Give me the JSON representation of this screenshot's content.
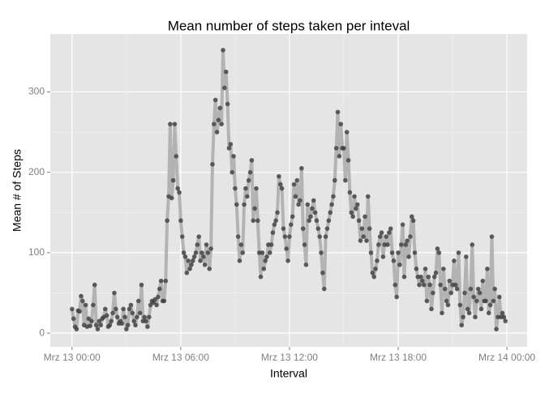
{
  "chart_data": {
    "type": "line",
    "title": "Mean number of steps taken per inteval",
    "x_label": "Interval",
    "y_label": "Mean # of Steps",
    "x": [
      0,
      5,
      10,
      15,
      20,
      25,
      30,
      35,
      40,
      45,
      50,
      55,
      60,
      65,
      70,
      75,
      80,
      85,
      90,
      95,
      100,
      105,
      110,
      115,
      120,
      125,
      130,
      135,
      140,
      145,
      150,
      155,
      160,
      165,
      170,
      175,
      180,
      185,
      190,
      195,
      200,
      205,
      210,
      215,
      220,
      225,
      230,
      235,
      240,
      245,
      250,
      255,
      260,
      265,
      270,
      275,
      280,
      285,
      290,
      295,
      300,
      305,
      310,
      315,
      320,
      325,
      330,
      335,
      340,
      345,
      350,
      355,
      360,
      365,
      370,
      375,
      380,
      385,
      390,
      395,
      400,
      405,
      410,
      415,
      420,
      425,
      430,
      435,
      440,
      445,
      450,
      455,
      460,
      465,
      470,
      475,
      480,
      485,
      490,
      495,
      500,
      505,
      510,
      515,
      520,
      525,
      530,
      535,
      540,
      545,
      550,
      555,
      560,
      565,
      570,
      575,
      580,
      585,
      590,
      595,
      600,
      605,
      610,
      615,
      620,
      625,
      630,
      635,
      640,
      645,
      650,
      655,
      660,
      665,
      670,
      675,
      680,
      685,
      690,
      695,
      700,
      705,
      710,
      715,
      720,
      725,
      730,
      735,
      740,
      745,
      750,
      755,
      760,
      765,
      770,
      775,
      780,
      785,
      790,
      795,
      800,
      805,
      810,
      815,
      820,
      825,
      830,
      835,
      840,
      845,
      850,
      855,
      860,
      865,
      870,
      875,
      880,
      885,
      890,
      895,
      900,
      905,
      910,
      915,
      920,
      925,
      930,
      935,
      940,
      945,
      950,
      955,
      960,
      965,
      970,
      975,
      980,
      985,
      990,
      995,
      1000,
      1005,
      1010,
      1015,
      1020,
      1025,
      1030,
      1035,
      1040,
      1045,
      1050,
      1055,
      1060,
      1065,
      1070,
      1075,
      1080,
      1085,
      1090,
      1095,
      1100,
      1105,
      1110,
      1115,
      1120,
      1125,
      1130,
      1135,
      1140,
      1145,
      1150,
      1155,
      1160,
      1165,
      1170,
      1175,
      1180,
      1185,
      1190,
      1195,
      1200,
      1205,
      1210,
      1215,
      1220,
      1225,
      1230,
      1235,
      1240,
      1245,
      1250,
      1255,
      1260,
      1265,
      1270,
      1275,
      1280,
      1285,
      1290,
      1295,
      1300,
      1305,
      1310,
      1315,
      1320,
      1325,
      1330,
      1335,
      1340,
      1345,
      1350,
      1355,
      1360,
      1365,
      1370,
      1375,
      1380,
      1385,
      1390,
      1395,
      1400,
      1405,
      1410,
      1415,
      1420,
      1425,
      1430,
      1435
    ],
    "series": [
      {
        "line_color": "#b3b3b3",
        "color": "#404040",
        "values": [
          30,
          18,
          8,
          5,
          28,
          27,
          46,
          40,
          10,
          35,
          8,
          18,
          9,
          15,
          35,
          60,
          10,
          5,
          15,
          10,
          18,
          20,
          30,
          22,
          8,
          10,
          15,
          25,
          50,
          30,
          20,
          12,
          15,
          12,
          30,
          20,
          5,
          10,
          30,
          35,
          25,
          15,
          10,
          20,
          40,
          25,
          60,
          15,
          20,
          15,
          8,
          20,
          35,
          40,
          38,
          42,
          35,
          45,
          55,
          65,
          40,
          40,
          65,
          140,
          170,
          260,
          168,
          190,
          260,
          220,
          180,
          175,
          140,
          120,
          100,
          95,
          75,
          90,
          80,
          85,
          90,
          95,
          100,
          110,
          120,
          90,
          100,
          95,
          85,
          110,
          100,
          80,
          105,
          210,
          260,
          290,
          250,
          265,
          280,
          260,
          352,
          305,
          325,
          285,
          230,
          235,
          200,
          220,
          180,
          160,
          120,
          90,
          110,
          100,
          160,
          180,
          170,
          190,
          200,
          215,
          140,
          155,
          180,
          140,
          100,
          70,
          100,
          80,
          90,
          95,
          110,
          100,
          110,
          125,
          135,
          140,
          150,
          195,
          185,
          180,
          130,
          120,
          105,
          90,
          120,
          135,
          145,
          185,
          170,
          190,
          160,
          165,
          205,
          130,
          110,
          85,
          160,
          140,
          145,
          155,
          165,
          150,
          140,
          130,
          120,
          100,
          75,
          55,
          120,
          130,
          140,
          150,
          160,
          170,
          190,
          230,
          275,
          220,
          260,
          230,
          230,
          190,
          250,
          215,
          175,
          150,
          145,
          170,
          155,
          160,
          140,
          115,
          130,
          120,
          145,
          115,
          170,
          130,
          100,
          75,
          70,
          80,
          90,
          110,
          120,
          125,
          95,
          110,
          120,
          110,
          125,
          130,
          100,
          90,
          60,
          45,
          100,
          85,
          110,
          135,
          70,
          110,
          115,
          95,
          120,
          145,
          140,
          100,
          80,
          70,
          60,
          70,
          65,
          60,
          80,
          40,
          70,
          60,
          30,
          50,
          70,
          75,
          105,
          100,
          60,
          25,
          80,
          55,
          40,
          35,
          65,
          50,
          60,
          90,
          60,
          55,
          100,
          35,
          10,
          20,
          50,
          95,
          30,
          25,
          55,
          110,
          45,
          20,
          40,
          55,
          50,
          30,
          65,
          40,
          40,
          80,
          25,
          35,
          120,
          40,
          55,
          5,
          20,
          45,
          20,
          25,
          20,
          15
        ]
      }
    ],
    "xlim": [
      -72,
      1507
    ],
    "xticks": [
      {
        "value": 0,
        "label": "Mrz 13 00:00"
      },
      {
        "value": 360,
        "label": "Mrz 13 06:00"
      },
      {
        "value": 720,
        "label": "Mrz 13 12:00"
      },
      {
        "value": 1080,
        "label": "Mrz 13 18:00"
      },
      {
        "value": 1440,
        "label": "Mrz 14 00:00"
      }
    ],
    "ylim": [
      -17,
      372
    ],
    "yticks": [
      0,
      100,
      200,
      300
    ],
    "grid": true
  }
}
